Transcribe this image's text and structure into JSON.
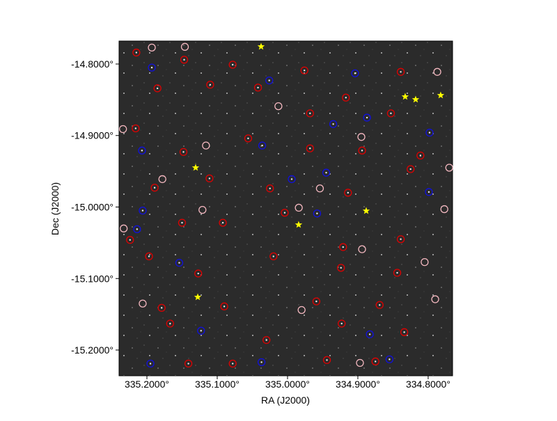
{
  "chart_data": {
    "type": "scatter",
    "xlabel": "RA (J2000)",
    "ylabel": "Dec (J2000)",
    "xlim": [
      335.2396,
      334.7653
    ],
    "ylim": [
      -15.236,
      -14.7679
    ],
    "xticks": [
      {
        "value": 335.2,
        "label": "335.2000°"
      },
      {
        "value": 335.1,
        "label": "335.1000°"
      },
      {
        "value": 335.0,
        "label": "335.0000°"
      },
      {
        "value": 334.9,
        "label": "334.9000°"
      },
      {
        "value": 334.8,
        "label": "334.8000°"
      }
    ],
    "yticks": [
      {
        "value": -14.8,
        "label": "-14.8000°"
      },
      {
        "value": -14.9,
        "label": "-14.9000°"
      },
      {
        "value": -15.0,
        "label": "-15.0000°"
      },
      {
        "value": -15.1,
        "label": "-15.1000°"
      },
      {
        "value": -15.2,
        "label": "-15.2000°"
      }
    ],
    "series": [
      {
        "color": "#e00000",
        "marker": "ring-dot",
        "x": [
          335.215,
          335.147,
          335.078,
          334.976,
          334.917,
          334.839,
          335.185,
          335.11,
          335.042,
          334.968,
          334.853,
          335.216,
          335.148,
          335.056,
          334.968,
          334.894,
          334.811,
          335.189,
          335.111,
          335.025,
          334.914,
          334.825,
          335.224,
          335.15,
          335.092,
          335.004,
          334.921,
          334.839,
          335.197,
          335.127,
          335.02,
          334.924,
          334.844,
          335.179,
          335.09,
          334.959,
          334.869,
          335.167,
          335.03,
          334.923,
          334.834,
          335.141,
          335.078,
          334.944,
          334.875
        ],
        "y": [
          -14.784,
          -14.794,
          -14.801,
          -14.809,
          -14.847,
          -14.811,
          -14.834,
          -14.829,
          -14.833,
          -14.869,
          -14.869,
          -14.89,
          -14.923,
          -14.904,
          -14.918,
          -14.921,
          -14.928,
          -14.973,
          -14.96,
          -14.974,
          -14.98,
          -14.947,
          -15.046,
          -15.022,
          -15.022,
          -15.008,
          -15.056,
          -15.045,
          -15.069,
          -15.093,
          -15.069,
          -15.085,
          -15.092,
          -15.141,
          -15.139,
          -15.132,
          -15.137,
          -15.163,
          -15.186,
          -15.163,
          -15.175,
          -15.219,
          -15.219,
          -15.214,
          -15.216
        ]
      },
      {
        "color": "#f4b8c0",
        "marker": "ring",
        "x": [
          335.193,
          335.146,
          334.787,
          335.013,
          335.234,
          334.895,
          335.116,
          334.77,
          335.178,
          334.954,
          334.777,
          335.121,
          334.984,
          335.233,
          334.894,
          334.805,
          335.206,
          334.98,
          334.79,
          334.897
        ],
        "y": [
          -14.777,
          -14.776,
          -14.811,
          -14.859,
          -14.891,
          -14.902,
          -14.914,
          -14.945,
          -14.961,
          -14.974,
          -15.003,
          -15.004,
          -15.001,
          -15.03,
          -15.059,
          -15.077,
          -15.135,
          -15.144,
          -15.129,
          -15.218
        ]
      },
      {
        "color": "#1010e0",
        "marker": "ring-dot",
        "x": [
          335.193,
          335.026,
          334.904,
          334.935,
          334.887,
          334.798,
          335.036,
          335.207,
          334.945,
          334.994,
          334.799,
          335.206,
          334.958,
          335.214,
          335.154,
          334.883,
          335.195,
          335.037,
          334.855,
          335.123
        ],
        "y": [
          -14.805,
          -14.823,
          -14.813,
          -14.884,
          -14.875,
          -14.896,
          -14.914,
          -14.921,
          -14.952,
          -14.961,
          -14.979,
          -15.005,
          -15.009,
          -15.031,
          -15.078,
          -15.178,
          -15.219,
          -15.217,
          -15.213,
          -15.173
        ]
      },
      {
        "color": "#ffff00",
        "marker": "star",
        "x": [
          335.0376,
          334.8327,
          334.8178,
          334.7822,
          335.1307,
          334.8881,
          334.9842,
          335.1277
        ],
        "y": [
          -14.7757,
          -14.8457,
          -14.8496,
          -14.8438,
          -14.945,
          -15.0054,
          -15.0248,
          -15.126
        ]
      }
    ]
  }
}
